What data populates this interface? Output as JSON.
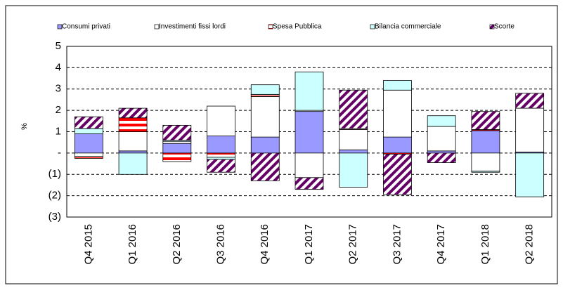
{
  "chart_data": {
    "type": "stacked_bar",
    "y_label": "%",
    "categories": [
      "Q4 2015",
      "Q1 2016",
      "Q2 2016",
      "Q3 2016",
      "Q4 2016",
      "Q1 2017",
      "Q2 2017",
      "Q3 2017",
      "Q4 2017",
      "Q1 2018",
      "Q2 2018"
    ],
    "series": [
      {
        "name": "Consumi privati",
        "color": "#9999ff",
        "hatch": false,
        "values": [
          0.9,
          0.1,
          0.45,
          0.8,
          0.75,
          1.95,
          0.15,
          0.75,
          0.1,
          1.05,
          0.05
        ]
      },
      {
        "name": "Investimenti fissi lordi",
        "color": "#ffffff",
        "hatch": false,
        "values": [
          -0.15,
          0.9,
          0.1,
          1.4,
          1.9,
          -1.15,
          0.95,
          2.2,
          1.15,
          -0.85,
          2.05
        ]
      },
      {
        "name": "Spesa Pubblica",
        "color": "#ff0000",
        "hatch": true,
        "values": [
          -0.1,
          0.65,
          -0.4,
          -0.2,
          0.1,
          0.05,
          0.05,
          -0.05,
          0.0,
          0.05,
          0.0
        ]
      },
      {
        "name": "Bilancia commerciale",
        "color": "#ccffff",
        "hatch": false,
        "values": [
          0.25,
          -1.0,
          0.05,
          -0.1,
          0.45,
          1.8,
          -1.6,
          0.45,
          0.5,
          -0.05,
          -2.05
        ]
      },
      {
        "name": "Scorte",
        "color": "#660066",
        "hatch": true,
        "values": [
          0.55,
          0.45,
          0.7,
          -0.6,
          -1.3,
          -0.55,
          1.8,
          -1.9,
          -0.45,
          0.85,
          0.7
        ]
      }
    ],
    "ylim": [
      -3,
      5
    ],
    "yticks": [
      {
        "value": -3,
        "label": "(3)"
      },
      {
        "value": -2,
        "label": "(2)"
      },
      {
        "value": -1,
        "label": "(1)"
      },
      {
        "value": 0,
        "label": "-"
      },
      1,
      2,
      3,
      4,
      5
    ],
    "grid": true
  }
}
